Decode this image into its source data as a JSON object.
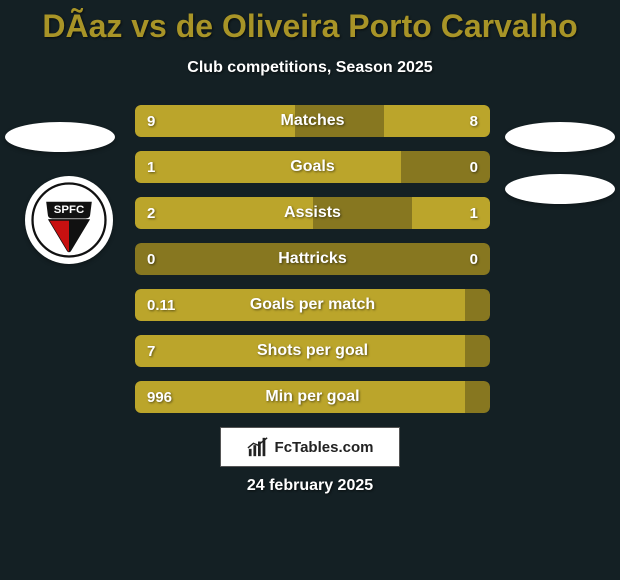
{
  "background_color": "#142024",
  "accent_color": "#a89427",
  "title": "DÃ­az vs de Oliveira Porto Carvalho",
  "title_color": "#a89427",
  "subtitle": "Club competitions, Season 2025",
  "footer_brand": "FcTables.com",
  "footer_date": "24 february 2025",
  "club_logo_text": "SPFC",
  "bars": {
    "track_color": "#877720",
    "fill_color": "#bba52b",
    "items": [
      {
        "label": "Matches",
        "left": "9",
        "right": "8",
        "left_pct": 45,
        "right_pct": 30
      },
      {
        "label": "Goals",
        "left": "1",
        "right": "0",
        "left_pct": 75,
        "right_pct": 0
      },
      {
        "label": "Assists",
        "left": "2",
        "right": "1",
        "left_pct": 50,
        "right_pct": 22
      },
      {
        "label": "Hattricks",
        "left": "0",
        "right": "0",
        "left_pct": 0,
        "right_pct": 0
      },
      {
        "label": "Goals per match",
        "left": "0.11",
        "right": "",
        "left_pct": 93,
        "right_pct": 0
      },
      {
        "label": "Shots per goal",
        "left": "7",
        "right": "",
        "left_pct": 93,
        "right_pct": 0
      },
      {
        "label": "Min per goal",
        "left": "996",
        "right": "",
        "left_pct": 93,
        "right_pct": 0
      }
    ]
  }
}
